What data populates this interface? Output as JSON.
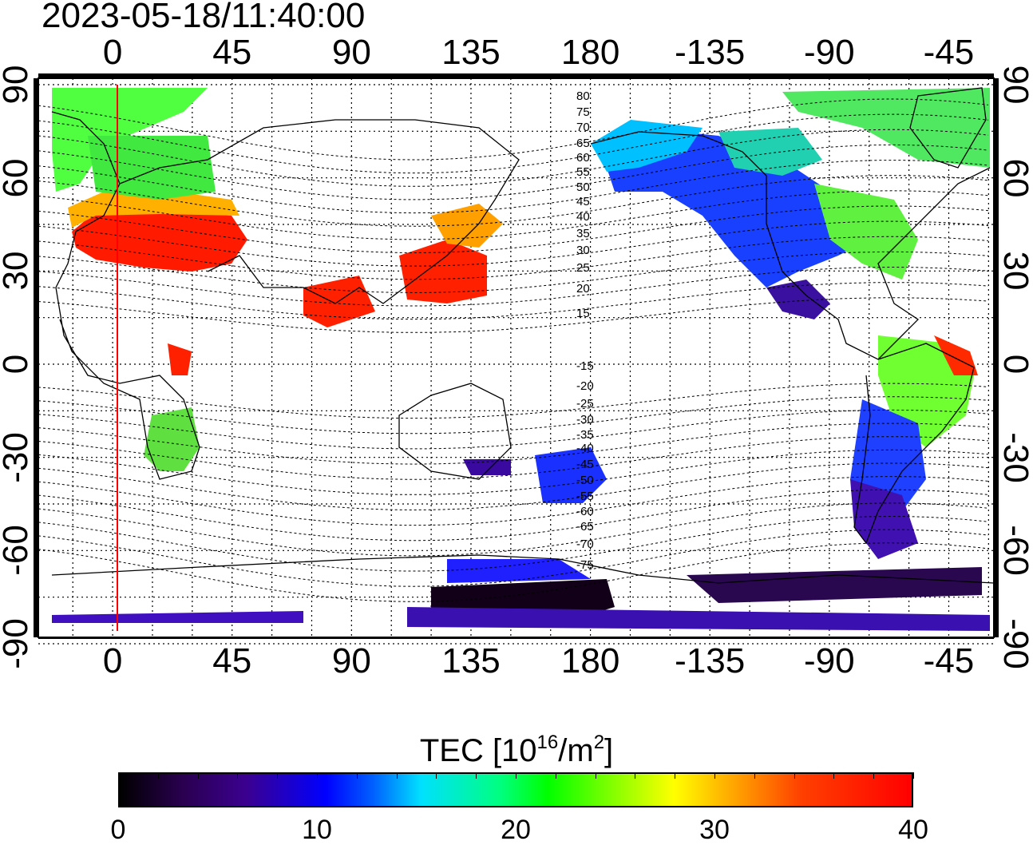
{
  "timestamp": "2023-05-18/11:40:00",
  "lon_ticks_top": [
    "0",
    "45",
    "90",
    "135",
    "180",
    "-135",
    "-90",
    "-45"
  ],
  "lon_ticks_bottom": [
    "0",
    "45",
    "90",
    "135",
    "180",
    "-135",
    "-90",
    "-45"
  ],
  "lat_ticks_left": [
    "90",
    "60",
    "30",
    "0",
    "-30",
    "-60",
    "-90"
  ],
  "lat_ticks_right": [
    "90",
    "60",
    "30",
    "0",
    "-30",
    "-60",
    "-90"
  ],
  "contour_labels": [
    "80",
    "75",
    "70",
    "65",
    "60",
    "55",
    "50",
    "45",
    "40",
    "35",
    "30",
    "25",
    "20",
    "15",
    "-15",
    "-20",
    "-25",
    "-30",
    "-35",
    "-40",
    "-45",
    "-50",
    "-55",
    "-60",
    "-65",
    "-70",
    "-75"
  ],
  "colorbar": {
    "title_prefix": "TEC  [10",
    "title_exp1": "16",
    "title_mid": "/m",
    "title_exp2": "2",
    "title_suffix": "]",
    "ticks": [
      "0",
      "10",
      "20",
      "30",
      "40"
    ],
    "range": [
      0,
      40
    ]
  },
  "colors": {
    "terminator_line": "#ff0000",
    "coastline": "#000000",
    "grid": "#000000"
  }
}
